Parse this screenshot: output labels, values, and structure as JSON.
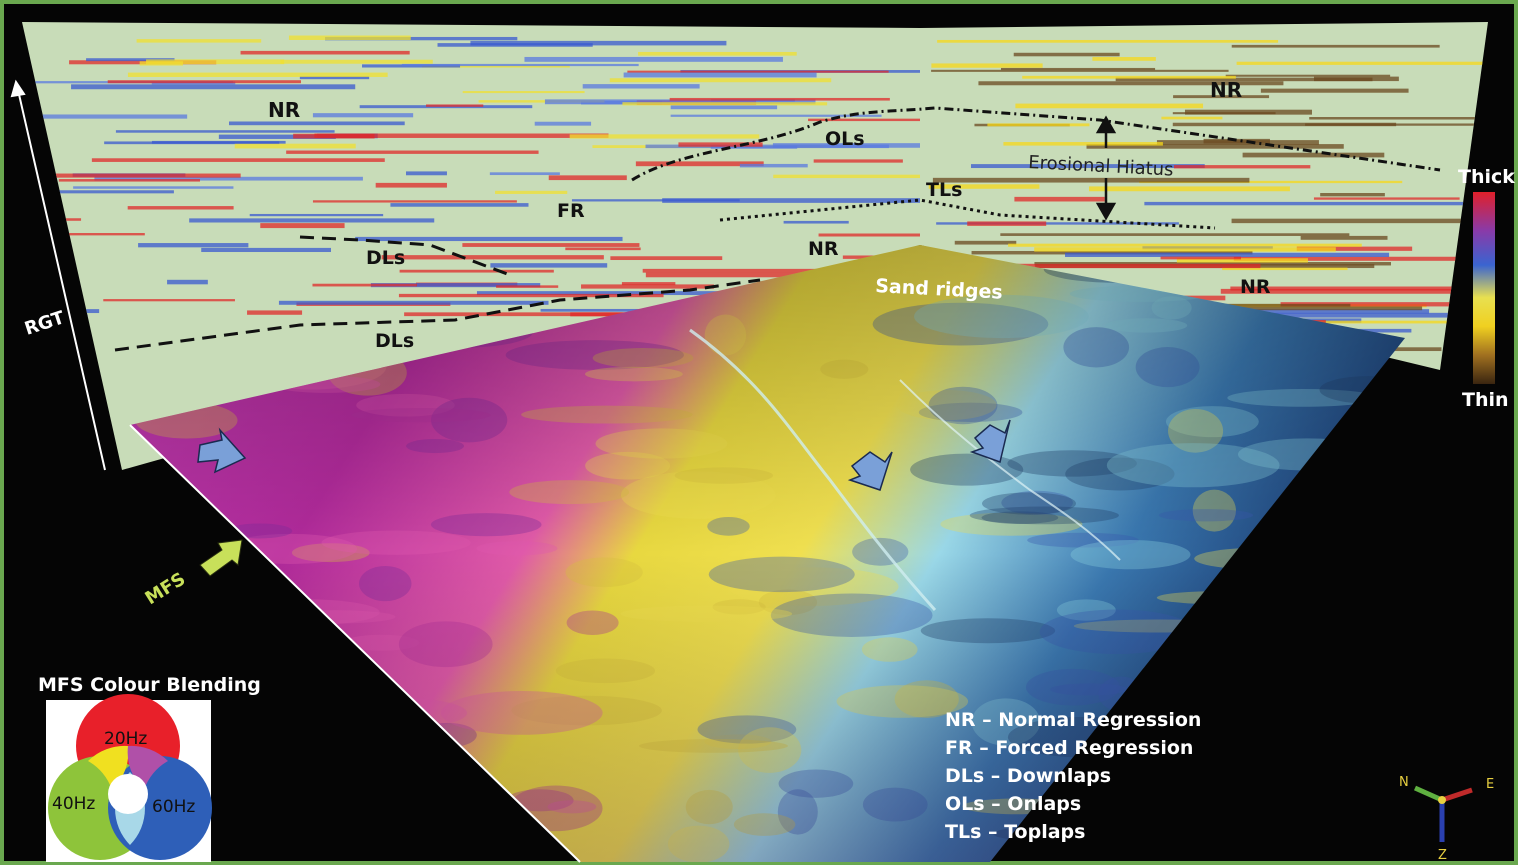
{
  "section_labels": {
    "nr_top_left": "NR",
    "nr_top_right": "NR",
    "nr_mid": "NR",
    "nr_right_lower": "NR",
    "fr": "FR",
    "dls_upper": "DLs",
    "dls_lower": "DLs",
    "ols": "OLs",
    "tls": "TLs",
    "erosional_hiatus": "Erosional Hiatus",
    "sand_ridges": "Sand ridges",
    "rgt": "RGT",
    "mfs_arrow": "MFS"
  },
  "thickness_scale": {
    "top": "Thick",
    "bottom": "Thin",
    "colors": [
      "#e0202a",
      "#8a3aa8",
      "#3a64d0",
      "#e8e050",
      "#f0d020",
      "#a07020",
      "#3a2510"
    ]
  },
  "blend_legend": {
    "title": "MFS Colour Blending",
    "circles": [
      {
        "label": "20Hz",
        "color": "#e8202a"
      },
      {
        "label": "40Hz",
        "color": "#8ec43a"
      },
      {
        "label": "60Hz",
        "color": "#2e5fb8"
      }
    ]
  },
  "abbreviations": [
    "NR – Normal Regression",
    "FR – Forced Regression",
    "DLs – Downlaps",
    "OLs – Onlaps",
    "TLs – Toplaps"
  ],
  "axes_gizmo": {
    "n": "N",
    "e": "E",
    "z": "Z"
  },
  "colors": {
    "frame": "#6aa84f",
    "background": "#050505",
    "panel": "#c8dcb8",
    "arrow": "#7aa0d8",
    "mfs_arrow": "#c8e05a"
  }
}
